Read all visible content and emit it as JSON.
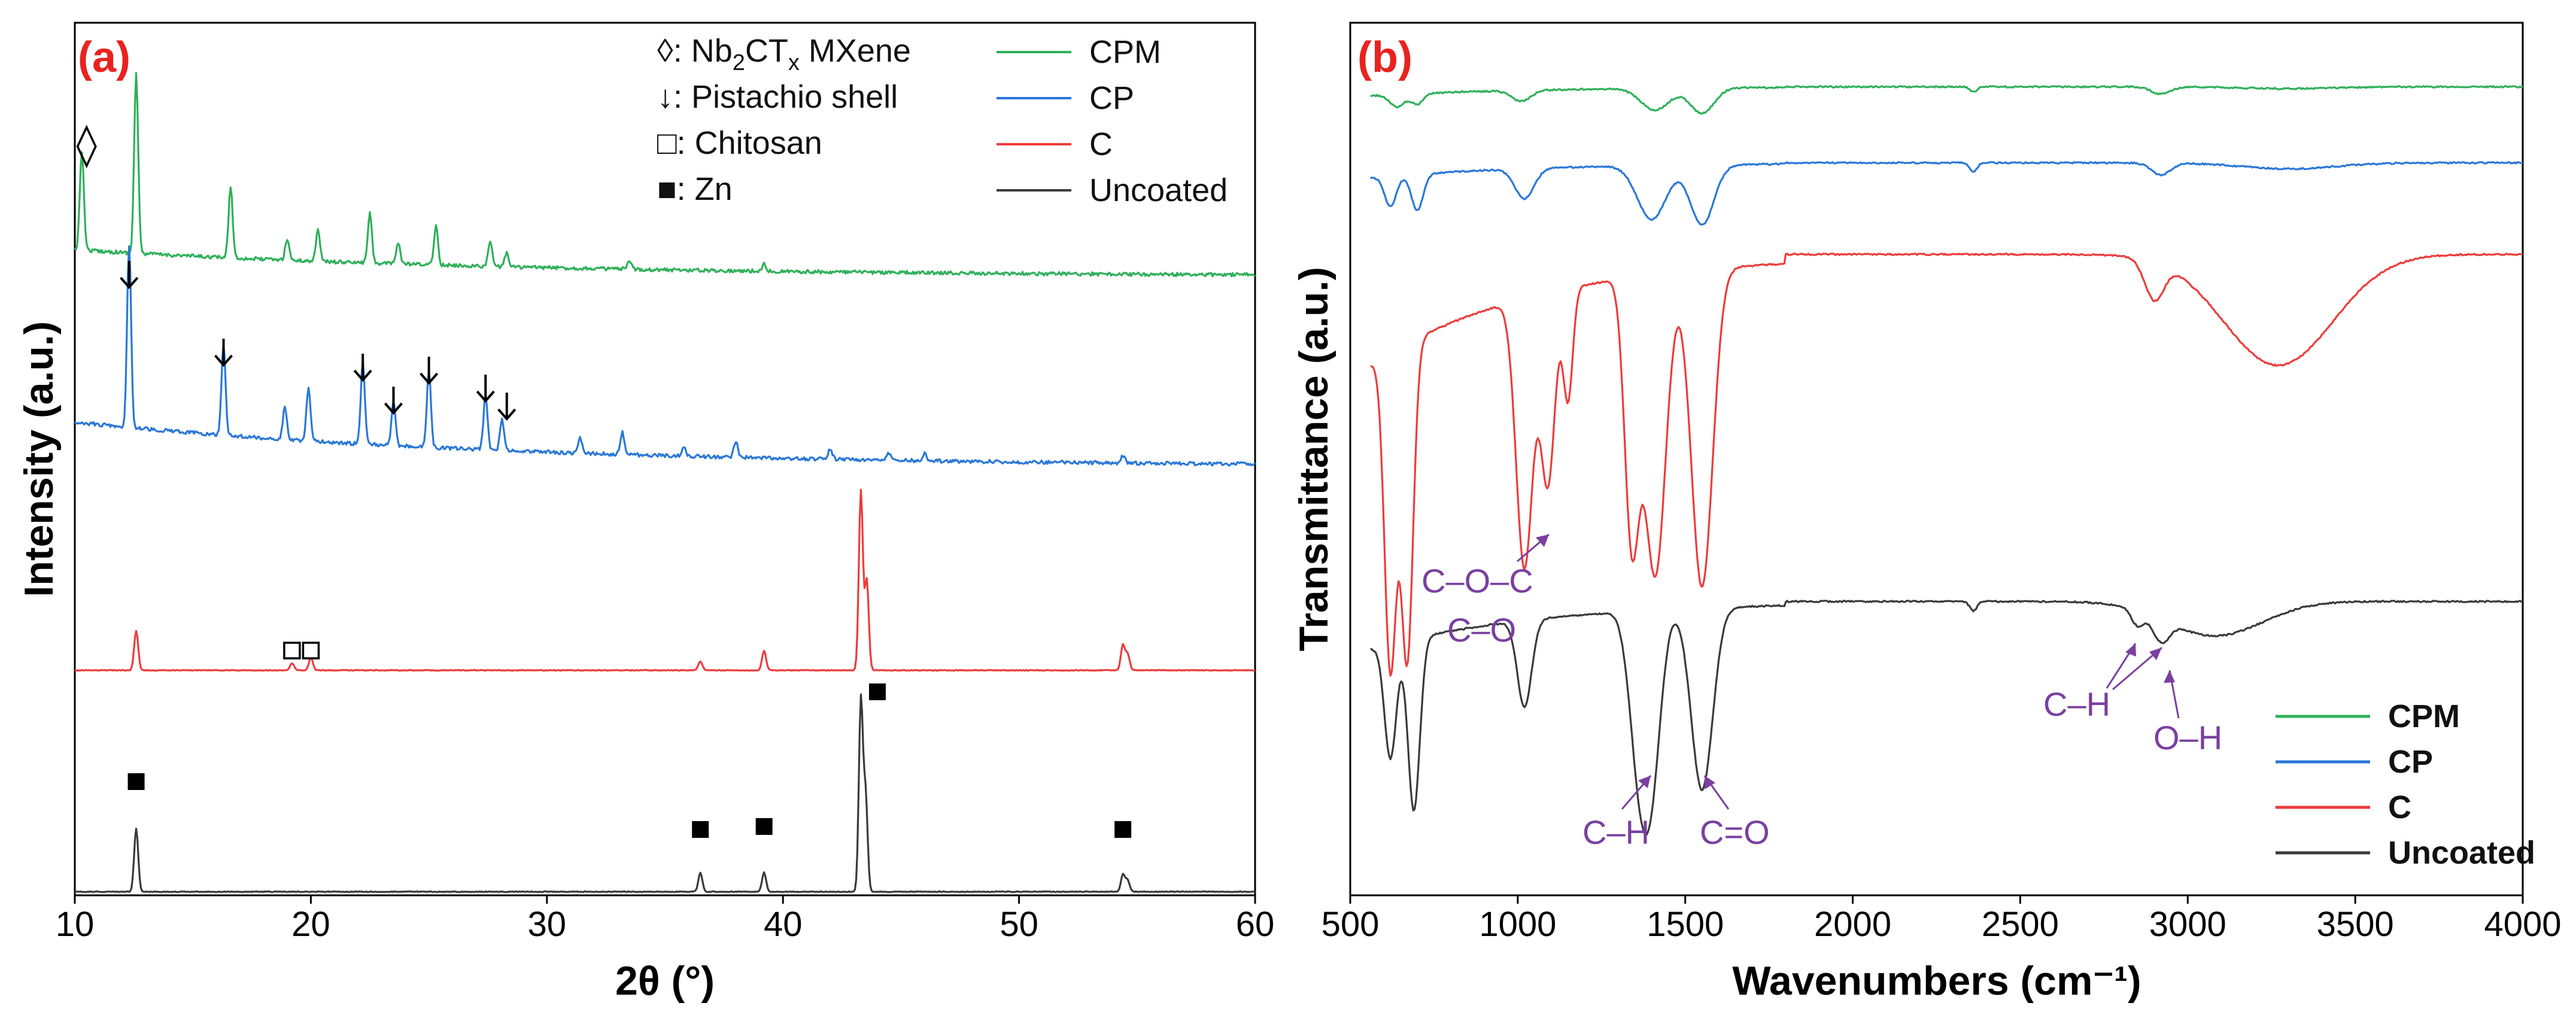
{
  "colors": {
    "CPM": "#2fb05a",
    "CP": "#2a78d8",
    "C": "#ee3b3b",
    "Uncoated": "#3a3a3a",
    "panel_label": "#e8231f",
    "annotation": "#7a3fa0"
  },
  "panel_a": {
    "label": "(a)",
    "legend_markers": [
      {
        "symbol": "◊",
        "text": ": Nb",
        "sub1": "2",
        "mid": "CT",
        "sub2": "x",
        "rest": " MXene"
      },
      {
        "symbol": "↓",
        "text": ": Pistachio shell"
      },
      {
        "symbol": "□",
        "text": ": Chitosan"
      },
      {
        "symbol": "■",
        "text": ": Zn"
      }
    ]
  },
  "panel_b": {
    "label": "(b)",
    "annotations": {
      "coc": "C–O–C",
      "co": "C–O",
      "ch_left": "C–H",
      "co_double": "C=O",
      "ch_right": "C–H",
      "oh": "O–H"
    }
  },
  "chart_data": [
    {
      "type": "line",
      "title": "(a)",
      "xlabel": "2θ (°)",
      "ylabel": "Intensity (a.u.)",
      "xlim": [
        10,
        60
      ],
      "xticks": [
        "10",
        "20",
        "30",
        "40",
        "50",
        "60"
      ],
      "legend_position": "top-right",
      "series": [
        {
          "name": "CPM",
          "peaks": [
            [
              10.3,
              0.55
            ],
            [
              12.6,
              1.0
            ],
            [
              16.6,
              0.4
            ],
            [
              19.0,
              0.12
            ],
            [
              20.3,
              0.18
            ],
            [
              22.5,
              0.28
            ],
            [
              23.7,
              0.12
            ],
            [
              25.3,
              0.22
            ],
            [
              27.6,
              0.14
            ],
            [
              28.3,
              0.08
            ],
            [
              33.5,
              0.04
            ],
            [
              39.2,
              0.04
            ]
          ]
        },
        {
          "name": "CP",
          "peaks": [
            [
              12.3,
              1.0
            ],
            [
              16.3,
              0.5
            ],
            [
              18.9,
              0.18
            ],
            [
              19.9,
              0.3
            ],
            [
              22.2,
              0.45
            ],
            [
              23.5,
              0.25
            ],
            [
              25.0,
              0.42
            ],
            [
              27.4,
              0.3
            ],
            [
              28.1,
              0.17
            ],
            [
              31.4,
              0.08
            ],
            [
              33.2,
              0.12
            ],
            [
              35.8,
              0.05
            ],
            [
              38.0,
              0.09
            ],
            [
              42.0,
              0.06
            ],
            [
              44.5,
              0.04
            ],
            [
              46.0,
              0.04
            ],
            [
              54.4,
              0.04
            ]
          ]
        },
        {
          "name": "C",
          "peaks": [
            [
              12.6,
              0.22
            ],
            [
              19.2,
              0.04
            ],
            [
              20.0,
              0.07
            ],
            [
              36.5,
              0.05
            ],
            [
              39.2,
              0.11
            ],
            [
              43.3,
              1.0
            ],
            [
              43.55,
              0.5
            ],
            [
              54.4,
              0.14
            ],
            [
              54.6,
              0.09
            ]
          ]
        },
        {
          "name": "Uncoated",
          "peaks": [
            [
              12.6,
              0.33
            ],
            [
              36.5,
              0.1
            ],
            [
              39.2,
              0.1
            ],
            [
              43.3,
              1.0
            ],
            [
              43.5,
              0.5
            ],
            [
              54.4,
              0.09
            ],
            [
              54.6,
              0.06
            ]
          ]
        }
      ],
      "peak_markers": {
        "mxene": [
          10.5
        ],
        "pistachio": [
          12.3,
          16.3,
          22.2,
          23.5,
          25.0,
          27.4,
          28.3
        ],
        "chitosan": [
          19.2,
          20.0
        ],
        "zn": [
          12.6,
          36.5,
          39.2,
          44.0,
          54.4
        ]
      }
    },
    {
      "type": "line",
      "title": "(b)",
      "xlabel": "Wavenumbers (cm⁻¹)",
      "ylabel": "Transmittance (a.u.)",
      "xlim": [
        500,
        4000
      ],
      "xticks": [
        "500",
        "1000",
        "1500",
        "2000",
        "2500",
        "3000",
        "3500",
        "4000"
      ],
      "legend_position": "bottom-right",
      "series": [
        {
          "name": "CPM",
          "bands": [
            [
              640,
              0.35,
              30
            ],
            [
              700,
              0.3,
              25
            ],
            [
              1010,
              0.3,
              40
            ],
            [
              1410,
              0.6,
              60
            ],
            [
              1550,
              0.7,
              50
            ],
            [
              2360,
              0.15,
              15
            ],
            [
              2920,
              0.2,
              40
            ],
            [
              3300,
              0.05,
              200
            ]
          ]
        },
        {
          "name": "CP",
          "bands": [
            [
              620,
              0.5,
              25
            ],
            [
              700,
              0.6,
              25
            ],
            [
              1020,
              0.5,
              40
            ],
            [
              1400,
              0.9,
              60
            ],
            [
              1550,
              1.0,
              50
            ],
            [
              2360,
              0.15,
              15
            ],
            [
              2920,
              0.2,
              40
            ],
            [
              3300,
              0.1,
              200
            ]
          ]
        },
        {
          "name": "C",
          "bands": [
            [
              620,
              1.0,
              25
            ],
            [
              670,
              1.0,
              25
            ],
            [
              1020,
              0.85,
              35
            ],
            [
              1090,
              0.6,
              30
            ],
            [
              1150,
              0.35,
              20
            ],
            [
              1340,
              0.8,
              30
            ],
            [
              1410,
              0.95,
              45
            ],
            [
              1550,
              1.0,
              45
            ],
            [
              2900,
              0.12,
              40
            ],
            [
              3270,
              0.35,
              230
            ]
          ]
        },
        {
          "name": "Uncoated",
          "bands": [
            [
              620,
              0.6,
              25
            ],
            [
              690,
              0.9,
              25
            ],
            [
              1020,
              0.45,
              30
            ],
            [
              1360,
              0.7,
              40
            ],
            [
              1400,
              0.8,
              40
            ],
            [
              1550,
              0.95,
              45
            ],
            [
              2360,
              0.05,
              15
            ],
            [
              2850,
              0.08,
              25
            ],
            [
              2920,
              0.12,
              35
            ],
            [
              3080,
              0.18,
              200
            ]
          ]
        }
      ]
    }
  ]
}
